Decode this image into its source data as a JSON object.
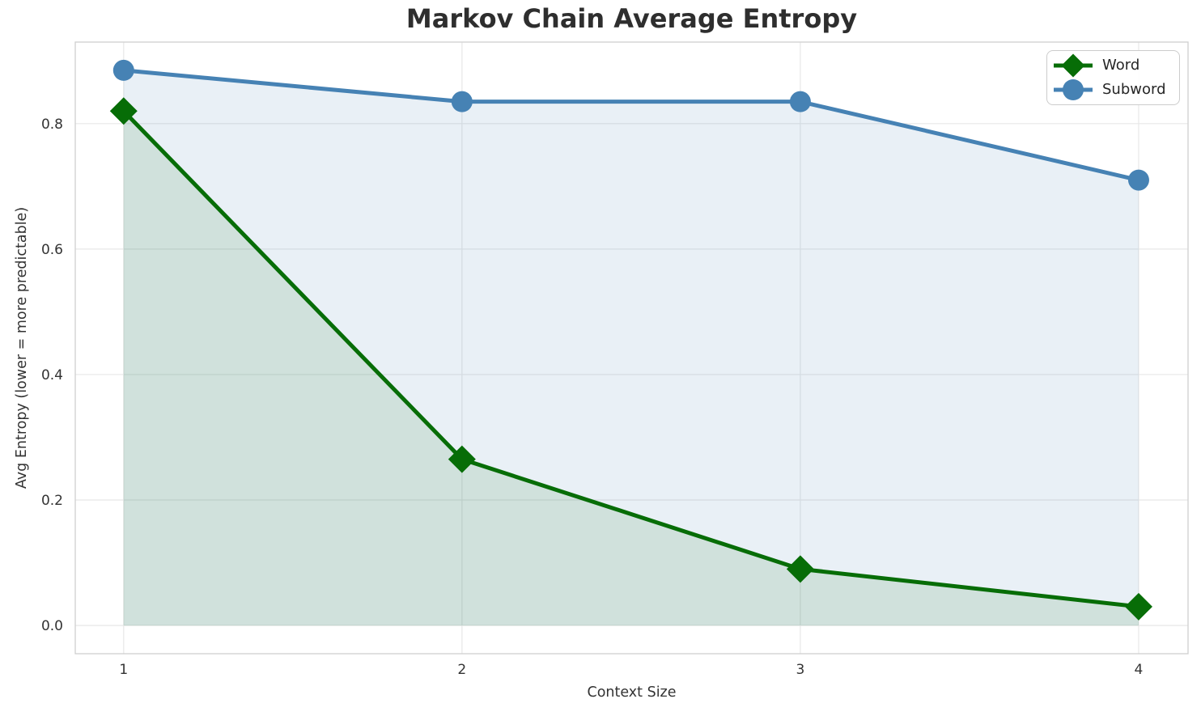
{
  "chart_data": {
    "type": "line",
    "title": "Markov Chain Average Entropy",
    "xlabel": "Context Size",
    "ylabel": "Avg Entropy (lower = more predictable)",
    "x": [
      1,
      2,
      3,
      4
    ],
    "series": [
      {
        "name": "Word",
        "values": [
          0.82,
          0.265,
          0.09,
          0.03
        ],
        "color": "#076d07",
        "fill": "rgba(7,109,7,0.11)",
        "marker": "diamond"
      },
      {
        "name": "Subword",
        "values": [
          0.885,
          0.835,
          0.835,
          0.71
        ],
        "color": "#4682b4",
        "fill": "rgba(70,130,180,0.12)",
        "marker": "circle"
      }
    ],
    "xlim": [
      0.857,
      4.146
    ],
    "ylim": [
      -0.045,
      0.93
    ],
    "xticks": {
      "values": [
        1,
        2,
        3,
        4
      ],
      "labels": [
        "1",
        "2",
        "3",
        "4"
      ]
    },
    "yticks": {
      "values": [
        0,
        0.2,
        0.4,
        0.6,
        0.8
      ],
      "labels": [
        "0.0",
        "0.2",
        "0.4",
        "0.6",
        "0.8"
      ]
    },
    "grid": true,
    "area_fill": true,
    "legend_position": "upper right"
  },
  "style": {
    "background": "#ffffff",
    "grid_color": "#e7e7e7",
    "spine_color": "#cfcfcf",
    "tick_label_color": "#333333",
    "title_color": "#2e2e2e",
    "legend_text_color": "#262626"
  }
}
